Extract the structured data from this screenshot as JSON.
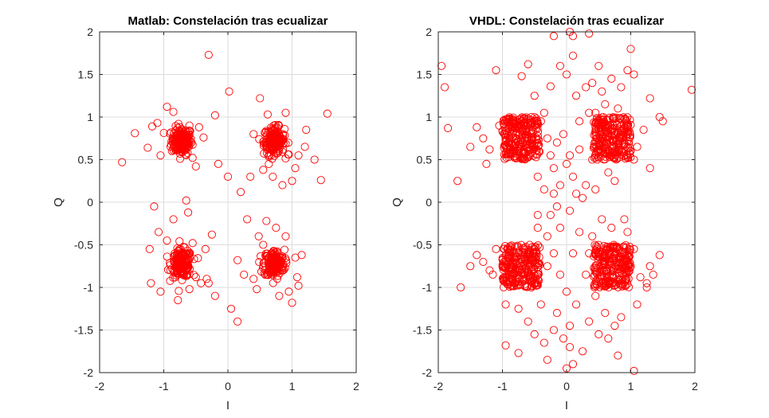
{
  "colors": {
    "marker": "#ff0000",
    "grid": "#dcdcdc",
    "axis": "#262626"
  },
  "chart_data": [
    {
      "type": "scatter",
      "title": "Matlab: Constelación tras ecualizar",
      "xlabel": "I",
      "ylabel": "Q",
      "xlim": [
        -2,
        2
      ],
      "ylim": [
        -2,
        2
      ],
      "xticks": [
        -2,
        -1,
        0,
        1,
        2
      ],
      "yticks": [
        2,
        1.5,
        1,
        0.5,
        0,
        -0.5,
        -1,
        -1.5,
        -2
      ],
      "xtick_labels": [
        "-2",
        "-1",
        "0",
        "1",
        "2"
      ],
      "ytick_labels": [
        "2",
        "1.5",
        "1",
        "0.5",
        "0",
        "-0.5",
        "-1",
        "-1.5",
        "-2"
      ],
      "grid": true,
      "marker": "open-circle",
      "clusters": [
        {
          "center": [
            -0.72,
            0.72
          ],
          "spread": 0.08,
          "count": 180
        },
        {
          "center": [
            0.72,
            0.72
          ],
          "spread": 0.08,
          "count": 180
        },
        {
          "center": [
            -0.72,
            -0.72
          ],
          "spread": 0.08,
          "count": 180
        },
        {
          "center": [
            0.72,
            -0.72
          ],
          "spread": 0.08,
          "count": 180
        }
      ],
      "points": [
        [
          -1.65,
          0.47
        ],
        [
          -1.45,
          0.81
        ],
        [
          -1.25,
          0.64
        ],
        [
          -1.18,
          0.89
        ],
        [
          -1.1,
          0.93
        ],
        [
          -1.05,
          0.55
        ],
        [
          -0.95,
          1.12
        ],
        [
          -0.85,
          1.06
        ],
        [
          -0.6,
          0.9
        ],
        [
          -0.55,
          0.52
        ],
        [
          -0.5,
          0.42
        ],
        [
          -0.45,
          0.88
        ],
        [
          -0.38,
          0.76
        ],
        [
          -0.3,
          1.73
        ],
        [
          -0.2,
          1.02
        ],
        [
          0.02,
          1.3
        ],
        [
          0.0,
          0.3
        ],
        [
          -0.15,
          0.45
        ],
        [
          0.2,
          0.12
        ],
        [
          0.35,
          0.3
        ],
        [
          0.5,
          1.22
        ],
        [
          0.4,
          0.8
        ],
        [
          0.62,
          1.03
        ],
        [
          0.9,
          1.05
        ],
        [
          0.95,
          0.56
        ],
        [
          1.05,
          0.4
        ],
        [
          1.1,
          0.55
        ],
        [
          1.2,
          0.65
        ],
        [
          1.22,
          0.85
        ],
        [
          1.35,
          0.5
        ],
        [
          1.45,
          0.26
        ],
        [
          1.55,
          1.04
        ],
        [
          0.55,
          0.38
        ],
        [
          0.7,
          0.3
        ],
        [
          0.85,
          0.2
        ],
        [
          1.0,
          0.25
        ],
        [
          -1.15,
          -0.05
        ],
        [
          -0.65,
          0.02
        ],
        [
          -0.62,
          -0.12
        ],
        [
          -1.22,
          -0.55
        ],
        [
          -1.2,
          -0.95
        ],
        [
          -1.08,
          -0.35
        ],
        [
          -1.05,
          -1.05
        ],
        [
          -0.95,
          -0.45
        ],
        [
          -0.85,
          -0.2
        ],
        [
          -0.78,
          -1.15
        ],
        [
          -0.6,
          -1.02
        ],
        [
          -0.55,
          -0.48
        ],
        [
          -0.5,
          -0.88
        ],
        [
          -0.42,
          -0.95
        ],
        [
          -0.35,
          -0.55
        ],
        [
          -0.33,
          -0.9
        ],
        [
          -0.3,
          -0.95
        ],
        [
          -0.25,
          -0.38
        ],
        [
          -0.2,
          -1.1
        ],
        [
          0.05,
          -1.25
        ],
        [
          0.15,
          -1.4
        ],
        [
          0.15,
          -0.68
        ],
        [
          0.25,
          -0.85
        ],
        [
          0.4,
          -0.9
        ],
        [
          0.45,
          -1.02
        ],
        [
          0.48,
          -0.4
        ],
        [
          0.55,
          -0.5
        ],
        [
          0.6,
          -0.22
        ],
        [
          0.75,
          -0.3
        ],
        [
          0.9,
          -0.4
        ],
        [
          0.95,
          -1.05
        ],
        [
          1.05,
          -0.65
        ],
        [
          1.08,
          -0.88
        ],
        [
          1.1,
          -0.98
        ],
        [
          1.15,
          -0.62
        ],
        [
          1.0,
          -1.18
        ],
        [
          0.8,
          -1.1
        ],
        [
          0.3,
          -0.2
        ]
      ]
    },
    {
      "type": "scatter",
      "title": "VHDL: Constelación tras ecualizar",
      "xlabel": "I",
      "ylabel": "Q",
      "xlim": [
        -2,
        2
      ],
      "ylim": [
        -2,
        2
      ],
      "xticks": [
        -2,
        -1,
        0,
        1,
        2
      ],
      "yticks": [
        2,
        1.5,
        1,
        0.5,
        0,
        -0.5,
        -1,
        -1.5,
        -2
      ],
      "xtick_labels": [
        "-2",
        "-1",
        "0",
        "1",
        "2"
      ],
      "ytick_labels": [
        "2",
        "1.5",
        "1",
        "0.5",
        "0",
        "-0.5",
        "-1",
        "-1.5",
        "-2"
      ],
      "grid": true,
      "marker": "open-circle",
      "clusters": [
        {
          "box": [
            -1.0,
            -0.42,
            0.5,
            1.0
          ],
          "count": 260
        },
        {
          "box": [
            0.42,
            1.0,
            0.5,
            1.0
          ],
          "count": 260
        },
        {
          "box": [
            -1.0,
            -0.42,
            -1.0,
            -0.5
          ],
          "count": 260
        },
        {
          "box": [
            0.42,
            1.0,
            -1.0,
            -0.5
          ],
          "count": 260
        }
      ],
      "points": [
        [
          -1.95,
          1.6
        ],
        [
          -1.9,
          1.35
        ],
        [
          -1.85,
          0.87
        ],
        [
          -1.7,
          0.25
        ],
        [
          -1.5,
          0.65
        ],
        [
          -1.4,
          0.88
        ],
        [
          -1.3,
          0.75
        ],
        [
          -1.25,
          0.45
        ],
        [
          -1.2,
          0.62
        ],
        [
          -1.1,
          1.55
        ],
        [
          -1.05,
          0.9
        ],
        [
          -1.5,
          -0.75
        ],
        [
          -1.65,
          -1.0
        ],
        [
          -1.4,
          -0.62
        ],
        [
          -1.3,
          -0.7
        ],
        [
          -1.2,
          -0.8
        ],
        [
          -1.15,
          -0.85
        ],
        [
          -1.1,
          -0.55
        ],
        [
          -0.95,
          -1.2
        ],
        [
          -0.95,
          -1.68
        ],
        [
          -0.75,
          -1.25
        ],
        [
          -0.7,
          1.48
        ],
        [
          -0.6,
          1.62
        ],
        [
          -0.55,
          1.0
        ],
        [
          -0.5,
          1.25
        ],
        [
          -0.45,
          0.3
        ],
        [
          -0.4,
          0.95
        ],
        [
          -0.35,
          1.05
        ],
        [
          -0.3,
          0.75
        ],
        [
          -0.25,
          1.36
        ],
        [
          -0.2,
          0.4
        ],
        [
          -0.2,
          0.1
        ],
        [
          -0.15,
          -0.05
        ],
        [
          -0.1,
          0.2
        ],
        [
          -0.1,
          -0.3
        ],
        [
          -0.05,
          0.8
        ],
        [
          0.0,
          1.5
        ],
        [
          0.05,
          0.55
        ],
        [
          0.1,
          0.3
        ],
        [
          0.15,
          1.25
        ],
        [
          0.2,
          0.95
        ],
        [
          0.25,
          0.05
        ],
        [
          0.3,
          1.35
        ],
        [
          0.35,
          1.05
        ],
        [
          0.4,
          1.4
        ],
        [
          0.45,
          0.15
        ],
        [
          0.5,
          1.6
        ],
        [
          0.55,
          1.3
        ],
        [
          0.6,
          1.15
        ],
        [
          0.65,
          0.35
        ],
        [
          0.7,
          1.45
        ],
        [
          0.75,
          0.25
        ],
        [
          0.8,
          1.1
        ],
        [
          0.85,
          1.35
        ],
        [
          -0.3,
          -0.4
        ],
        [
          -0.25,
          -0.15
        ],
        [
          -0.2,
          -0.6
        ],
        [
          -0.15,
          -1.3
        ],
        [
          -0.1,
          -0.85
        ],
        [
          -0.05,
          -1.6
        ],
        [
          0.0,
          -1.05
        ],
        [
          0.05,
          -1.45
        ],
        [
          0.1,
          -0.6
        ],
        [
          0.1,
          -1.9
        ],
        [
          0.15,
          -1.2
        ],
        [
          0.2,
          -0.35
        ],
        [
          0.25,
          -1.75
        ],
        [
          0.3,
          -0.85
        ],
        [
          0.35,
          -1.4
        ],
        [
          0.4,
          -0.4
        ],
        [
          0.45,
          -1.1
        ],
        [
          0.5,
          -1.55
        ],
        [
          0.55,
          -0.2
        ],
        [
          0.6,
          -1.3
        ],
        [
          0.65,
          -1.6
        ],
        [
          0.7,
          -0.3
        ],
        [
          0.75,
          -1.45
        ],
        [
          0.8,
          -1.8
        ],
        [
          -0.6,
          -1.4
        ],
        [
          -0.55,
          -1.0
        ],
        [
          -0.5,
          -1.55
        ],
        [
          -0.45,
          -0.3
        ],
        [
          -0.4,
          -1.2
        ],
        [
          -0.35,
          -1.65
        ],
        [
          -0.3,
          -1.85
        ],
        [
          -0.75,
          -1.77
        ],
        [
          -0.2,
          -1.5
        ],
        [
          0.0,
          -1.95
        ],
        [
          0.05,
          -1.7
        ],
        [
          0.1,
          1.95
        ],
        [
          0.05,
          2.0
        ],
        [
          -0.2,
          1.95
        ],
        [
          0.35,
          1.98
        ],
        [
          0.45,
          1.05
        ],
        [
          0.1,
          1.72
        ],
        [
          -0.1,
          1.6
        ],
        [
          0.95,
          1.55
        ],
        [
          1.05,
          1.5
        ],
        [
          1.2,
          0.85
        ],
        [
          1.3,
          1.22
        ],
        [
          1.45,
          1.0
        ],
        [
          1.5,
          0.95
        ],
        [
          1.1,
          0.65
        ],
        [
          1.05,
          0.5
        ],
        [
          1.3,
          0.4
        ],
        [
          1.0,
          1.8
        ],
        [
          1.95,
          1.32
        ],
        [
          1.15,
          -0.88
        ],
        [
          1.25,
          -0.95
        ],
        [
          1.3,
          -0.75
        ],
        [
          1.35,
          -0.85
        ],
        [
          1.45,
          -0.62
        ],
        [
          1.25,
          -1.0
        ],
        [
          1.05,
          -0.55
        ],
        [
          1.1,
          -1.2
        ],
        [
          1.05,
          -1.98
        ],
        [
          0.85,
          -1.35
        ],
        [
          0.9,
          -0.2
        ],
        [
          0.95,
          -0.35
        ],
        [
          -0.25,
          0.55
        ],
        [
          -0.15,
          0.7
        ],
        [
          0.0,
          0.45
        ],
        [
          0.05,
          -0.1
        ],
        [
          0.15,
          0.1
        ],
        [
          0.2,
          0.62
        ],
        [
          -0.35,
          0.15
        ],
        [
          -0.45,
          -0.15
        ],
        [
          0.3,
          0.2
        ],
        [
          0.35,
          -0.6
        ],
        [
          0.4,
          0.5
        ],
        [
          -0.3,
          -0.75
        ]
      ]
    }
  ]
}
